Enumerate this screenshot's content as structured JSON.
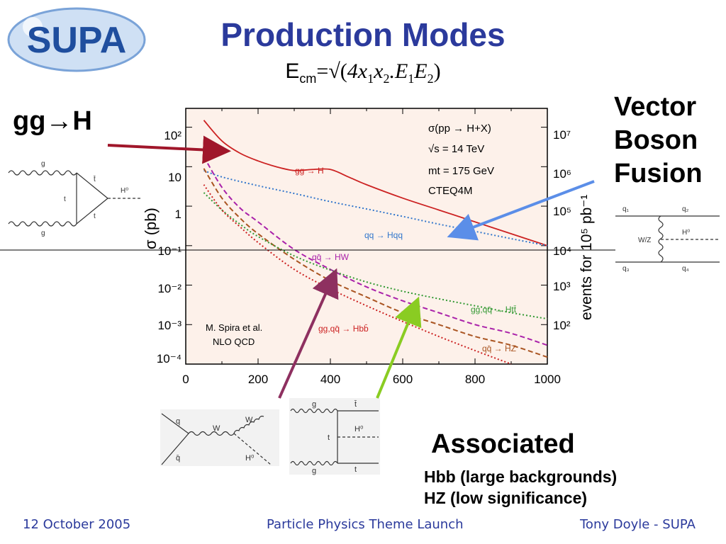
{
  "header": {
    "logo_text": "SUPA",
    "title": "Production Modes",
    "formula": {
      "ecm": "E",
      "ecm_sub": "cm",
      "eq": "=√(",
      "x": "4x",
      "x_sub1": "1",
      "x2": "x",
      "x_sub2": "2",
      "dot": ".E",
      "e_sub1": "1",
      "e2": "E",
      "e_sub2": "2",
      "close": ")"
    }
  },
  "labels": {
    "gg_h": "gg→H",
    "vbf": [
      "Vector",
      "Boson",
      "Fusion"
    ],
    "associated": "Associated",
    "assoc_notes": [
      "Hbb (large backgrounds)",
      "HZ (low significance)"
    ]
  },
  "footer": {
    "date": "12 October 2005",
    "event": "Particle Physics Theme Launch",
    "author": "Tony Doyle - SUPA"
  },
  "chart_data": {
    "type": "line",
    "ylabel": "σ (pb)",
    "ylabel_right": "events for 10⁵ pb⁻¹",
    "y_log": true,
    "xlim": [
      0,
      1000
    ],
    "ylim": [
      0.0001,
      300
    ],
    "x_ticks": [
      "0",
      "200",
      "400",
      "600",
      "800",
      "1000"
    ],
    "y_ticks_left": [
      "10²",
      "10",
      "1",
      "10⁻¹",
      "10⁻²",
      "10⁻³",
      "10⁻⁴"
    ],
    "y_ticks_right": [
      "10⁷",
      "10⁶",
      "10⁵",
      "10⁴",
      "10³",
      "10²"
    ],
    "annotations": [
      "σ(pp → H+X)",
      "√s = 14 TeV",
      "mt = 175 GeV",
      "CTEQ4M",
      "M. Spira et al.",
      "NLO QCD"
    ],
    "series": [
      {
        "name": "gg → H",
        "color": "#cc2222",
        "style": "solid",
        "x": [
          50,
          100,
          150,
          200,
          250,
          300,
          350,
          400,
          450,
          500,
          600,
          700,
          800,
          900,
          1000
        ],
        "y": [
          150,
          45,
          22,
          14,
          10,
          8,
          8.5,
          8.5,
          5.5,
          3.5,
          1.6,
          0.8,
          0.4,
          0.2,
          0.1
        ]
      },
      {
        "name": "qq → Hqq",
        "color": "#3377cc",
        "style": "dotted",
        "x": [
          50,
          100,
          200,
          300,
          400,
          500,
          600,
          700,
          800,
          900,
          1000
        ],
        "y": [
          8,
          5.5,
          3.3,
          2.1,
          1.3,
          0.85,
          0.55,
          0.35,
          0.23,
          0.15,
          0.1
        ]
      },
      {
        "name": "qq̄ → HW",
        "color": "#aa22aa",
        "style": "dashed",
        "x": [
          50,
          100,
          150,
          200,
          300,
          400,
          500,
          600,
          700,
          800,
          900,
          1000
        ],
        "y": [
          18,
          3,
          0.9,
          0.4,
          0.08,
          0.025,
          0.009,
          0.004,
          0.002,
          0.001,
          0.0006,
          0.0003
        ]
      },
      {
        "name": "qq̄ → HZ",
        "color": "#aa5522",
        "style": "dashed",
        "x": [
          50,
          100,
          150,
          200,
          300,
          400,
          500,
          600,
          700,
          800,
          900,
          1000
        ],
        "y": [
          9,
          1.6,
          0.5,
          0.2,
          0.045,
          0.013,
          0.005,
          0.002,
          0.001,
          0.0005,
          0.0003,
          0.00015
        ]
      },
      {
        "name": "gg,qq̄ → Htt̄",
        "color": "#339933",
        "style": "dotted",
        "x": [
          50,
          100,
          150,
          200,
          300,
          400,
          500,
          600,
          700,
          800,
          900,
          1000
        ],
        "y": [
          2.2,
          0.8,
          0.35,
          0.17,
          0.055,
          0.024,
          0.012,
          0.007,
          0.0045,
          0.003,
          0.002,
          0.0014
        ]
      },
      {
        "name": "gg,qq̄ → Hbb̄",
        "color": "#cc2222",
        "style": "dotted",
        "x": [
          50,
          100,
          150,
          200,
          300,
          400,
          500,
          600,
          700,
          800,
          900
        ],
        "y": [
          3.5,
          0.8,
          0.3,
          0.12,
          0.025,
          0.008,
          0.003,
          0.0012,
          0.0005,
          0.00022,
          0.0001
        ]
      }
    ]
  }
}
